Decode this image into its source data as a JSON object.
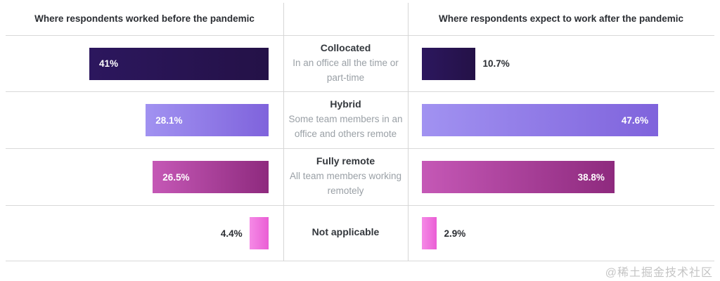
{
  "watermark": "@稀土掘金技术社区",
  "chart_data": {
    "type": "bar",
    "layout": "diverging horizontal butterfly chart; 'before' bars grow leftward (right-aligned), 'after' bars grow rightward (left-aligned), category labels in center column",
    "left_title": "Where respondents worked before the pandemic",
    "right_title": "Where respondents expect to work after the pandemic",
    "categories": [
      "Collocated",
      "Hybrid",
      "Fully remote",
      "Not applicable"
    ],
    "category_descriptions": [
      "In an office all the time or part-time",
      "Some team members in an office and others remote",
      "All team members working remotely",
      ""
    ],
    "series": [
      {
        "name": "Where respondents worked before the pandemic",
        "side": "left",
        "values": [
          41,
          28.1,
          26.5,
          4.4
        ],
        "labels": [
          "41%",
          "28.1%",
          "26.5%",
          "4.4%"
        ]
      },
      {
        "name": "Where respondents expect to work after the pandemic",
        "side": "right",
        "values": [
          10.7,
          47.6,
          38.8,
          2.9
        ],
        "labels": [
          "10.7%",
          "47.6%",
          "38.8%",
          "2.9%"
        ]
      }
    ],
    "row_colors": [
      {
        "from": "#2c175e",
        "to": "#241147"
      },
      {
        "from": "#a192f1",
        "to": "#7f63dc"
      },
      {
        "from": "#c558b6",
        "to": "#8e2a7e"
      },
      {
        "from": "#f58ae6",
        "to": "#ea5ed5"
      }
    ],
    "value_range": [
      0,
      50
    ],
    "grid": "light gray horizontal row separators and two vertical column dividers",
    "legend": "none"
  }
}
